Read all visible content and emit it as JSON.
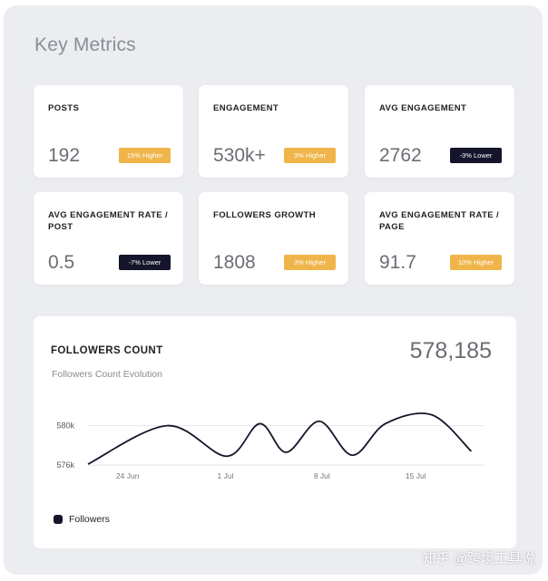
{
  "page": {
    "title": "Key Metrics"
  },
  "metrics": [
    {
      "label": "POSTS",
      "value": "192",
      "badge": "15% Higher",
      "trend": "up"
    },
    {
      "label": "ENGAGEMENT",
      "value": "530k+",
      "badge": "3% Higher",
      "trend": "up"
    },
    {
      "label": "AVG ENGAGEMENT",
      "value": "2762",
      "badge": "-3% Lower",
      "trend": "down"
    },
    {
      "label": "AVG ENGAGEMENT RATE / POST",
      "value": "0.5",
      "badge": "-7% Lower",
      "trend": "down"
    },
    {
      "label": "FOLLOWERS GROWTH",
      "value": "1808",
      "badge": "3% Higher",
      "trend": "up"
    },
    {
      "label": "AVG ENGAGEMENT RATE / PAGE",
      "value": "91.7",
      "badge": "10% Higher",
      "trend": "up"
    }
  ],
  "followers_chart": {
    "title": "FOLLOWERS COUNT",
    "subtitle": "Followers Count Evolution",
    "total": "578,185",
    "legend": "Followers"
  },
  "colors": {
    "higher_badge": "#f0b54a",
    "lower_badge": "#14152a",
    "line": "#14152a"
  },
  "chart_data": {
    "type": "line",
    "title": "FOLLOWERS COUNT",
    "subtitle": "Followers Count Evolution",
    "x_ticks": [
      "24 Jun",
      "1 Jul",
      "8 Jul",
      "15 Jul"
    ],
    "y_ticks": [
      "580k",
      "576k"
    ],
    "ylim": [
      575000,
      583000
    ],
    "x_range": [
      0,
      30
    ],
    "grid": "horizontal",
    "legend": "bottom-left",
    "series": [
      {
        "name": "Followers",
        "color": "#14152a",
        "x": [
          0,
          6,
          10.5,
          13,
          15,
          17.5,
          20,
          22.5,
          26,
          29
        ],
        "y": [
          576100,
          580000,
          576900,
          580200,
          577300,
          580450,
          577000,
          580200,
          581100,
          577400
        ]
      }
    ]
  },
  "watermark": "知乎 @跨境工具说"
}
